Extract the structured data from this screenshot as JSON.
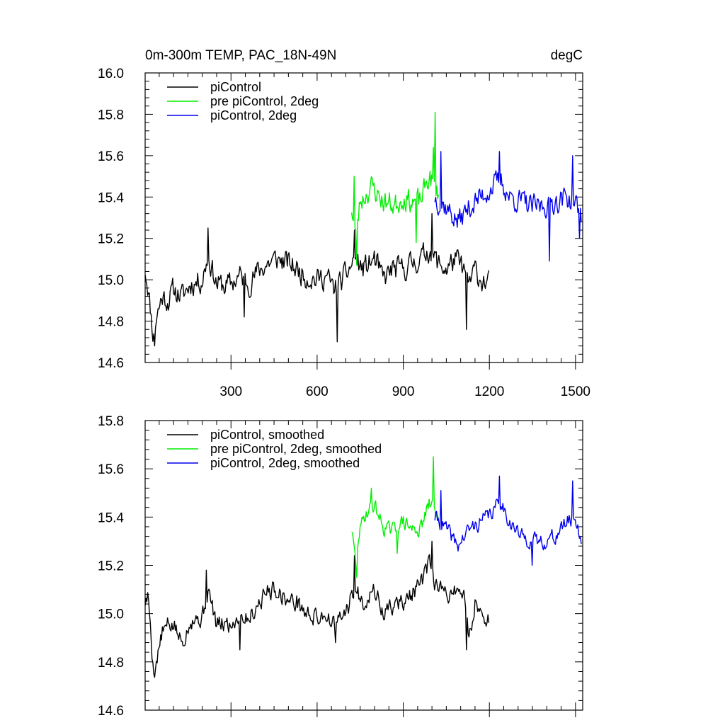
{
  "figure": {
    "title_left": "0m-300m TEMP, PAC_18N-49N",
    "title_right": "degC"
  },
  "colors": {
    "picontrol": "#000000",
    "pre_picontrol_2deg": "#00ee00",
    "picontrol_2deg": "#0000ee"
  },
  "chart_data": [
    {
      "type": "line",
      "panel": "top",
      "title": "0m-300m TEMP, PAC_18N-49N",
      "units": "degC",
      "xlim": [
        1,
        1525
      ],
      "ylim": [
        14.6,
        16.0
      ],
      "xticks": [
        300,
        600,
        900,
        1200,
        1500
      ],
      "yticks": [
        14.6,
        14.8,
        15.0,
        15.2,
        15.4,
        15.6,
        15.8,
        16.0
      ],
      "legend_position": "top-left",
      "series": [
        {
          "key": "picontrol",
          "name": "piControl",
          "x_start": 1,
          "x_end": 1200,
          "keypoints": [
            [
              1,
              15.05
            ],
            [
              10,
              14.98
            ],
            [
              20,
              14.85
            ],
            [
              30,
              14.72
            ],
            [
              40,
              14.82
            ],
            [
              60,
              14.92
            ],
            [
              80,
              14.9
            ],
            [
              100,
              14.95
            ],
            [
              130,
              14.92
            ],
            [
              160,
              14.98
            ],
            [
              200,
              15.0
            ],
            [
              220,
              15.12
            ],
            [
              250,
              14.98
            ],
            [
              280,
              14.97
            ],
            [
              300,
              14.98
            ],
            [
              330,
              15.02
            ],
            [
              360,
              14.98
            ],
            [
              400,
              15.05
            ],
            [
              430,
              15.08
            ],
            [
              460,
              15.1
            ],
            [
              500,
              15.08
            ],
            [
              530,
              15.05
            ],
            [
              560,
              15.02
            ],
            [
              600,
              15.0
            ],
            [
              630,
              15.02
            ],
            [
              660,
              14.95
            ],
            [
              700,
              15.02
            ],
            [
              730,
              15.1
            ],
            [
              760,
              15.05
            ],
            [
              800,
              15.1
            ],
            [
              830,
              15.0
            ],
            [
              860,
              15.05
            ],
            [
              900,
              15.05
            ],
            [
              930,
              15.08
            ],
            [
              960,
              15.1
            ],
            [
              990,
              15.15
            ],
            [
              1020,
              15.08
            ],
            [
              1050,
              15.05
            ],
            [
              1080,
              15.1
            ],
            [
              1110,
              15.05
            ],
            [
              1130,
              14.98
            ],
            [
              1150,
              15.05
            ],
            [
              1170,
              15.0
            ],
            [
              1200,
              14.98
            ]
          ],
          "noise": 0.09,
          "seed": 11,
          "spikes": [
            [
              35,
              14.68
            ],
            [
              220,
              15.25
            ],
            [
              345,
              14.82
            ],
            [
              670,
              14.7
            ],
            [
              730,
              15.24
            ],
            [
              1000,
              15.32
            ],
            [
              1120,
              14.76
            ]
          ]
        },
        {
          "key": "pre_picontrol_2deg",
          "name": "pre piControl, 2deg",
          "x_start": 720,
          "x_end": 1025,
          "keypoints": [
            [
              720,
              15.35
            ],
            [
              735,
              15.2
            ],
            [
              750,
              15.38
            ],
            [
              790,
              15.45
            ],
            [
              830,
              15.38
            ],
            [
              870,
              15.36
            ],
            [
              900,
              15.4
            ],
            [
              930,
              15.38
            ],
            [
              960,
              15.38
            ],
            [
              990,
              15.5
            ],
            [
              1010,
              15.45
            ],
            [
              1025,
              15.4
            ]
          ],
          "noise": 0.09,
          "seed": 23,
          "spikes": [
            [
              728,
              15.5
            ],
            [
              738,
              15.07
            ],
            [
              945,
              15.18
            ],
            [
              1005,
              15.64
            ],
            [
              1012,
              15.81
            ]
          ]
        },
        {
          "key": "picontrol_2deg",
          "name": "piControl, 2deg",
          "x_start": 1010,
          "x_end": 1520,
          "keypoints": [
            [
              1010,
              15.4
            ],
            [
              1050,
              15.35
            ],
            [
              1090,
              15.28
            ],
            [
              1130,
              15.35
            ],
            [
              1170,
              15.4
            ],
            [
              1210,
              15.45
            ],
            [
              1240,
              15.48
            ],
            [
              1270,
              15.4
            ],
            [
              1310,
              15.38
            ],
            [
              1350,
              15.35
            ],
            [
              1390,
              15.36
            ],
            [
              1430,
              15.38
            ],
            [
              1470,
              15.4
            ],
            [
              1500,
              15.36
            ],
            [
              1520,
              15.32
            ]
          ],
          "noise": 0.09,
          "seed": 37,
          "spikes": [
            [
              1030,
              15.62
            ],
            [
              1235,
              15.62
            ],
            [
              1410,
              15.09
            ],
            [
              1490,
              15.6
            ],
            [
              1515,
              15.2
            ]
          ]
        }
      ]
    },
    {
      "type": "line",
      "panel": "bottom",
      "xlim": [
        1,
        1525
      ],
      "ylim": [
        14.6,
        15.8
      ],
      "xticks": [
        300,
        600,
        900,
        1200,
        1500
      ],
      "yticks": [
        14.6,
        14.8,
        15.0,
        15.2,
        15.4,
        15.6,
        15.8
      ],
      "legend_position": "top-left",
      "series": [
        {
          "key": "picontrol",
          "name": "piControl, smoothed",
          "x_start": 1,
          "x_end": 1200,
          "keypoints": [
            [
              1,
              15.05
            ],
            [
              10,
              15.07
            ],
            [
              20,
              14.95
            ],
            [
              30,
              14.75
            ],
            [
              40,
              14.8
            ],
            [
              60,
              14.92
            ],
            [
              80,
              14.95
            ],
            [
              100,
              14.95
            ],
            [
              130,
              14.88
            ],
            [
              160,
              14.98
            ],
            [
              200,
              14.98
            ],
            [
              220,
              15.1
            ],
            [
              250,
              14.95
            ],
            [
              280,
              14.96
            ],
            [
              300,
              14.95
            ],
            [
              330,
              15.0
            ],
            [
              360,
              14.98
            ],
            [
              400,
              15.05
            ],
            [
              430,
              15.1
            ],
            [
              460,
              15.1
            ],
            [
              500,
              15.05
            ],
            [
              530,
              15.05
            ],
            [
              560,
              15.0
            ],
            [
              600,
              14.98
            ],
            [
              630,
              15.0
            ],
            [
              660,
              14.95
            ],
            [
              700,
              15.0
            ],
            [
              730,
              15.1
            ],
            [
              760,
              15.05
            ],
            [
              800,
              15.1
            ],
            [
              830,
              15.0
            ],
            [
              860,
              15.03
            ],
            [
              900,
              15.05
            ],
            [
              930,
              15.08
            ],
            [
              960,
              15.12
            ],
            [
              990,
              15.2
            ],
            [
              1020,
              15.1
            ],
            [
              1050,
              15.08
            ],
            [
              1080,
              15.1
            ],
            [
              1110,
              15.08
            ],
            [
              1130,
              14.9
            ],
            [
              1150,
              15.05
            ],
            [
              1170,
              15.0
            ],
            [
              1200,
              14.98
            ]
          ],
          "noise": 0.06,
          "seed": 5,
          "spikes": [
            [
              30,
              14.75
            ],
            [
              215,
              15.18
            ],
            [
              330,
              14.85
            ],
            [
              665,
              14.88
            ],
            [
              730,
              15.24
            ],
            [
              1000,
              15.3
            ],
            [
              1120,
              14.85
            ]
          ]
        },
        {
          "key": "pre_picontrol_2deg",
          "name": "pre piControl, 2deg, smoothed",
          "x_start": 720,
          "x_end": 1025,
          "keypoints": [
            [
              720,
              15.35
            ],
            [
              735,
              15.2
            ],
            [
              745,
              15.33
            ],
            [
              770,
              15.42
            ],
            [
              800,
              15.45
            ],
            [
              830,
              15.36
            ],
            [
              860,
              15.34
            ],
            [
              900,
              15.38
            ],
            [
              930,
              15.35
            ],
            [
              960,
              15.35
            ],
            [
              990,
              15.45
            ],
            [
              1010,
              15.45
            ],
            [
              1025,
              15.38
            ]
          ],
          "noise": 0.05,
          "seed": 29,
          "spikes": [
            [
              738,
              15.15
            ],
            [
              790,
              15.52
            ],
            [
              880,
              15.25
            ],
            [
              1005,
              15.65
            ]
          ]
        },
        {
          "key": "picontrol_2deg",
          "name": "piControl, 2deg, smoothed",
          "x_start": 1010,
          "x_end": 1520,
          "keypoints": [
            [
              1010,
              15.4
            ],
            [
              1050,
              15.35
            ],
            [
              1090,
              15.28
            ],
            [
              1130,
              15.35
            ],
            [
              1170,
              15.38
            ],
            [
              1210,
              15.42
            ],
            [
              1240,
              15.47
            ],
            [
              1270,
              15.38
            ],
            [
              1310,
              15.32
            ],
            [
              1350,
              15.3
            ],
            [
              1390,
              15.3
            ],
            [
              1430,
              15.32
            ],
            [
              1470,
              15.38
            ],
            [
              1500,
              15.4
            ],
            [
              1520,
              15.3
            ]
          ],
          "noise": 0.05,
          "seed": 41,
          "spikes": [
            [
              1030,
              15.51
            ],
            [
              1235,
              15.57
            ],
            [
              1350,
              15.2
            ],
            [
              1490,
              15.55
            ]
          ]
        }
      ]
    }
  ]
}
